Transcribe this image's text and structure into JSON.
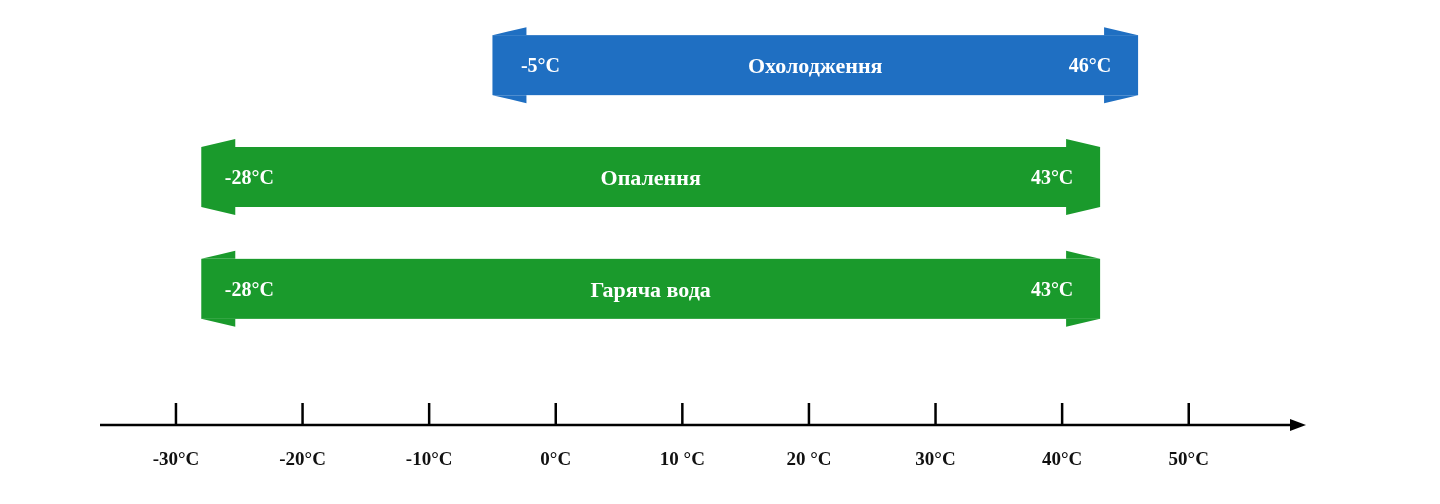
{
  "chart_data": {
    "type": "bar",
    "orientation": "horizontal",
    "tick_labels": "x",
    "categories": [
      "Охолодження",
      "Опалення",
      "Гаряча вода"
    ],
    "base": [
      -5,
      -28,
      -28
    ],
    "values": [
      51,
      71,
      71
    ],
    "colors": [
      "#1f6fc2",
      "#1a9a2c",
      "#1a9a2c"
    ],
    "xlim": [
      -36,
      58
    ],
    "xticks": [
      {
        "value": -30,
        "label": "-30°C"
      },
      {
        "value": -20,
        "label": "-20°C"
      },
      {
        "value": -10,
        "label": "-10°C"
      },
      {
        "value": 0,
        "label": "0°C"
      },
      {
        "value": 10,
        "label": "10 °C"
      },
      {
        "value": 20,
        "label": "20 °C"
      },
      {
        "value": 30,
        "label": "30°C"
      },
      {
        "value": 40,
        "label": "40°C"
      },
      {
        "value": 50,
        "label": "50°C"
      }
    ],
    "annotations": [
      "-5°C",
      "46°C",
      "-28°C",
      "43°C",
      "-28°C",
      "43°C"
    ]
  }
}
